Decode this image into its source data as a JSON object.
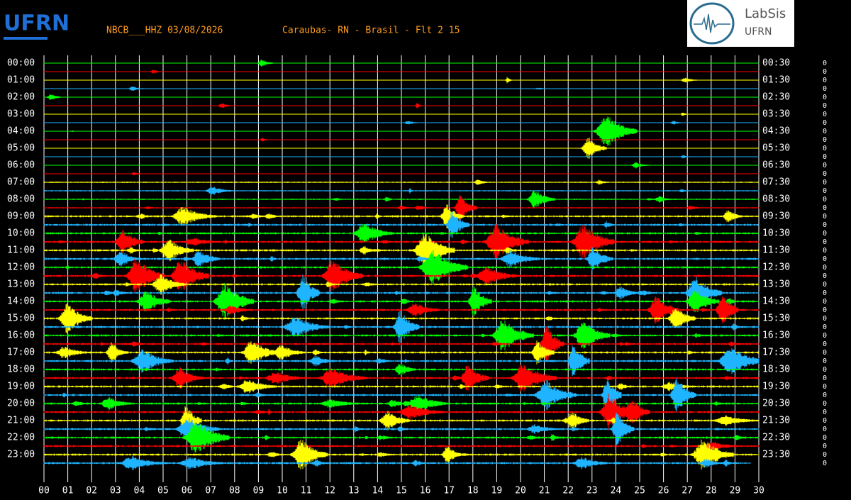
{
  "header": {
    "station": "NBCB___HHZ 03/08/2026",
    "location": "Caraubas- RN - Brasil - Flt 2 15"
  },
  "logos": {
    "left": "UFRN",
    "right_top": "LabSis",
    "right_bottom": "UFRN"
  },
  "left_labels": [
    "00:00",
    "01:00",
    "02:00",
    "03:00",
    "04:00",
    "05:00",
    "06:00",
    "07:00",
    "08:00",
    "09:00",
    "10:00",
    "11:00",
    "12:00",
    "13:00",
    "14:00",
    "15:00",
    "16:00",
    "17:00",
    "18:00",
    "19:00",
    "20:00",
    "21:00",
    "22:00",
    "23:00"
  ],
  "right_labels": [
    "00:30",
    "01:30",
    "02:30",
    "03:30",
    "04:30",
    "05:30",
    "06:30",
    "07:30",
    "08:30",
    "09:30",
    "10:30",
    "11:30",
    "12:30",
    "13:30",
    "14:30",
    "15:30",
    "16:30",
    "17:30",
    "18:30",
    "19:30",
    "20:30",
    "21:30",
    "22:30",
    "23:30"
  ],
  "x_labels": [
    "00",
    "01",
    "02",
    "03",
    "04",
    "05",
    "06",
    "07",
    "08",
    "09",
    "10",
    "11",
    "12",
    "13",
    "14",
    "15",
    "16",
    "17",
    "18",
    "19",
    "20",
    "21",
    "22",
    "23",
    "24",
    "25",
    "26",
    "27",
    "28",
    "29",
    "30"
  ],
  "scale_labels": [
    "0",
    "0",
    "0",
    "0",
    "0",
    "0",
    "0",
    "0",
    "0",
    "0",
    "0",
    "0",
    "0",
    "0",
    "0",
    "0",
    "0",
    "0",
    "0",
    "0",
    "0",
    "0",
    "0",
    "0",
    "0",
    "0",
    "0",
    "0",
    "0",
    "0",
    "0",
    "0",
    "0",
    "0",
    "0",
    "0",
    "0",
    "0",
    "0",
    "0",
    "0",
    "0",
    "0",
    "0",
    "0",
    "0",
    "0",
    "0"
  ]
}
